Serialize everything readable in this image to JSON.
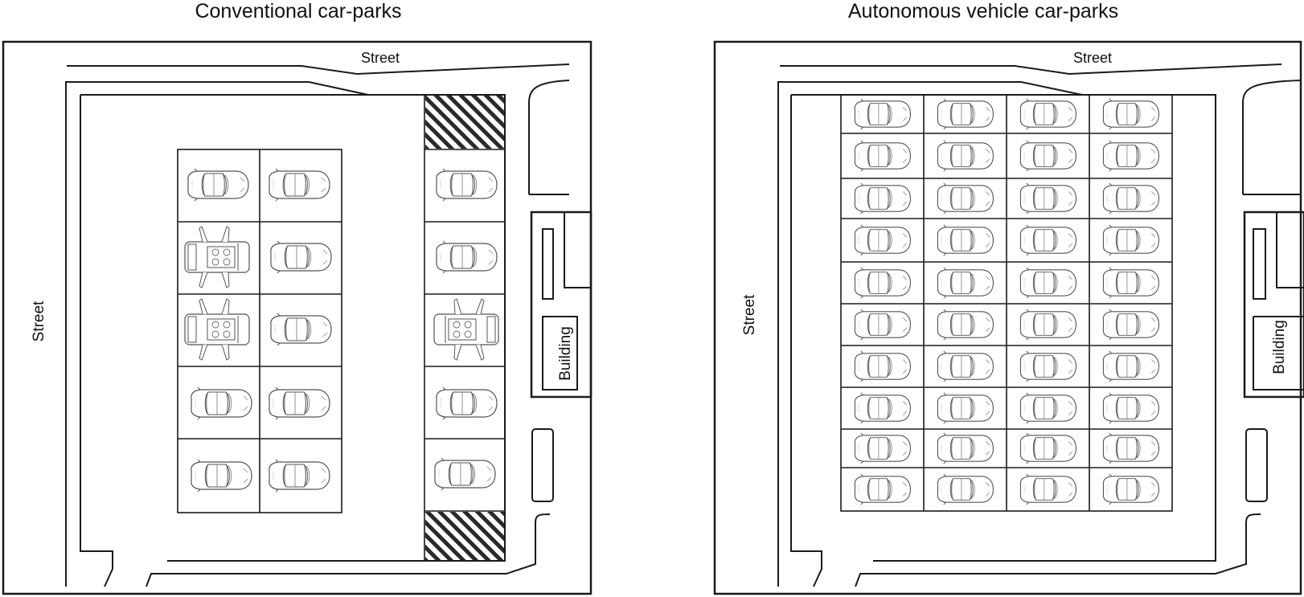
{
  "left_panel": {
    "title": "Conventional car-parks",
    "street_top": "Street",
    "street_left": "Street"
  },
  "right_panel": {
    "title": "Autonomous vehicle car-parks",
    "street_top": "Street",
    "street_left": "Street",
    "building": "Building"
  },
  "colors": {
    "line": "#1a1a1a",
    "car_line": "#555555"
  }
}
